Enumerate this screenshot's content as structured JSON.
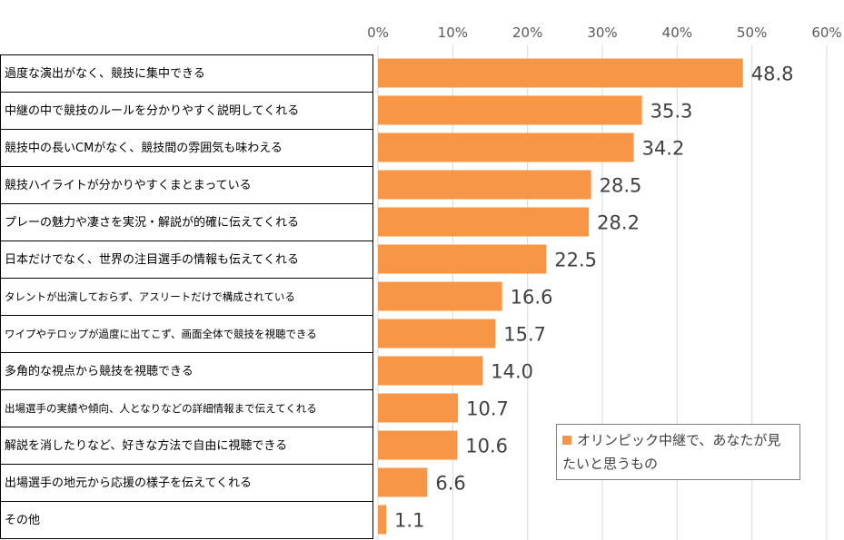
{
  "chart_data": {
    "type": "bar",
    "orientation": "horizontal",
    "categories": [
      "過度な演出がなく、競技に集中できる",
      "中継の中で競技のルールを分かりやすく説明してくれる",
      "競技中の長いCMがなく、競技間の雰囲気も味わえる",
      "競技ハイライトが分かりやすくまとまっている",
      "プレーの魅力や凄さを実況・解説が的確に伝えてくれる",
      "日本だけでなく、世界の注目選手の情報も伝えてくれる",
      "タレントが出演しておらず、アスリートだけで構成されている",
      "ワイプやテロップが過度に出てこず、画面全体で競技を視聴できる",
      "多角的な視点から競技を視聴できる",
      "出場選手の実績や傾向、人となりなどの詳細情報まで伝えてくれる",
      "解説を消したりなど、好きな方法で自由に視聴できる",
      "出場選手の地元から応援の様子を伝えてくれる",
      "その他"
    ],
    "series": [
      {
        "name": "オリンピック中継で、あなたが見たいと思うもの",
        "values": [
          48.8,
          35.3,
          34.2,
          28.5,
          28.2,
          22.5,
          16.6,
          15.7,
          14.0,
          10.7,
          10.6,
          6.6,
          1.1
        ]
      }
    ],
    "data_labels": [
      "48.8",
      "35.3",
      "34.2",
      "28.5",
      "28.2",
      "22.5",
      "16.6",
      "15.7",
      "14.0",
      "10.7",
      "10.6",
      "6.6",
      "1.1"
    ],
    "xlim": [
      0,
      60
    ],
    "xticks": [
      "0%",
      "10%",
      "20%",
      "30%",
      "40%",
      "50%",
      "60%"
    ],
    "x_axis_position": "top",
    "grid": true,
    "legend_position": "bottom-right",
    "colors": {
      "bar": "#F79646",
      "grid": "#D9D9D9",
      "label": "#404040"
    }
  }
}
